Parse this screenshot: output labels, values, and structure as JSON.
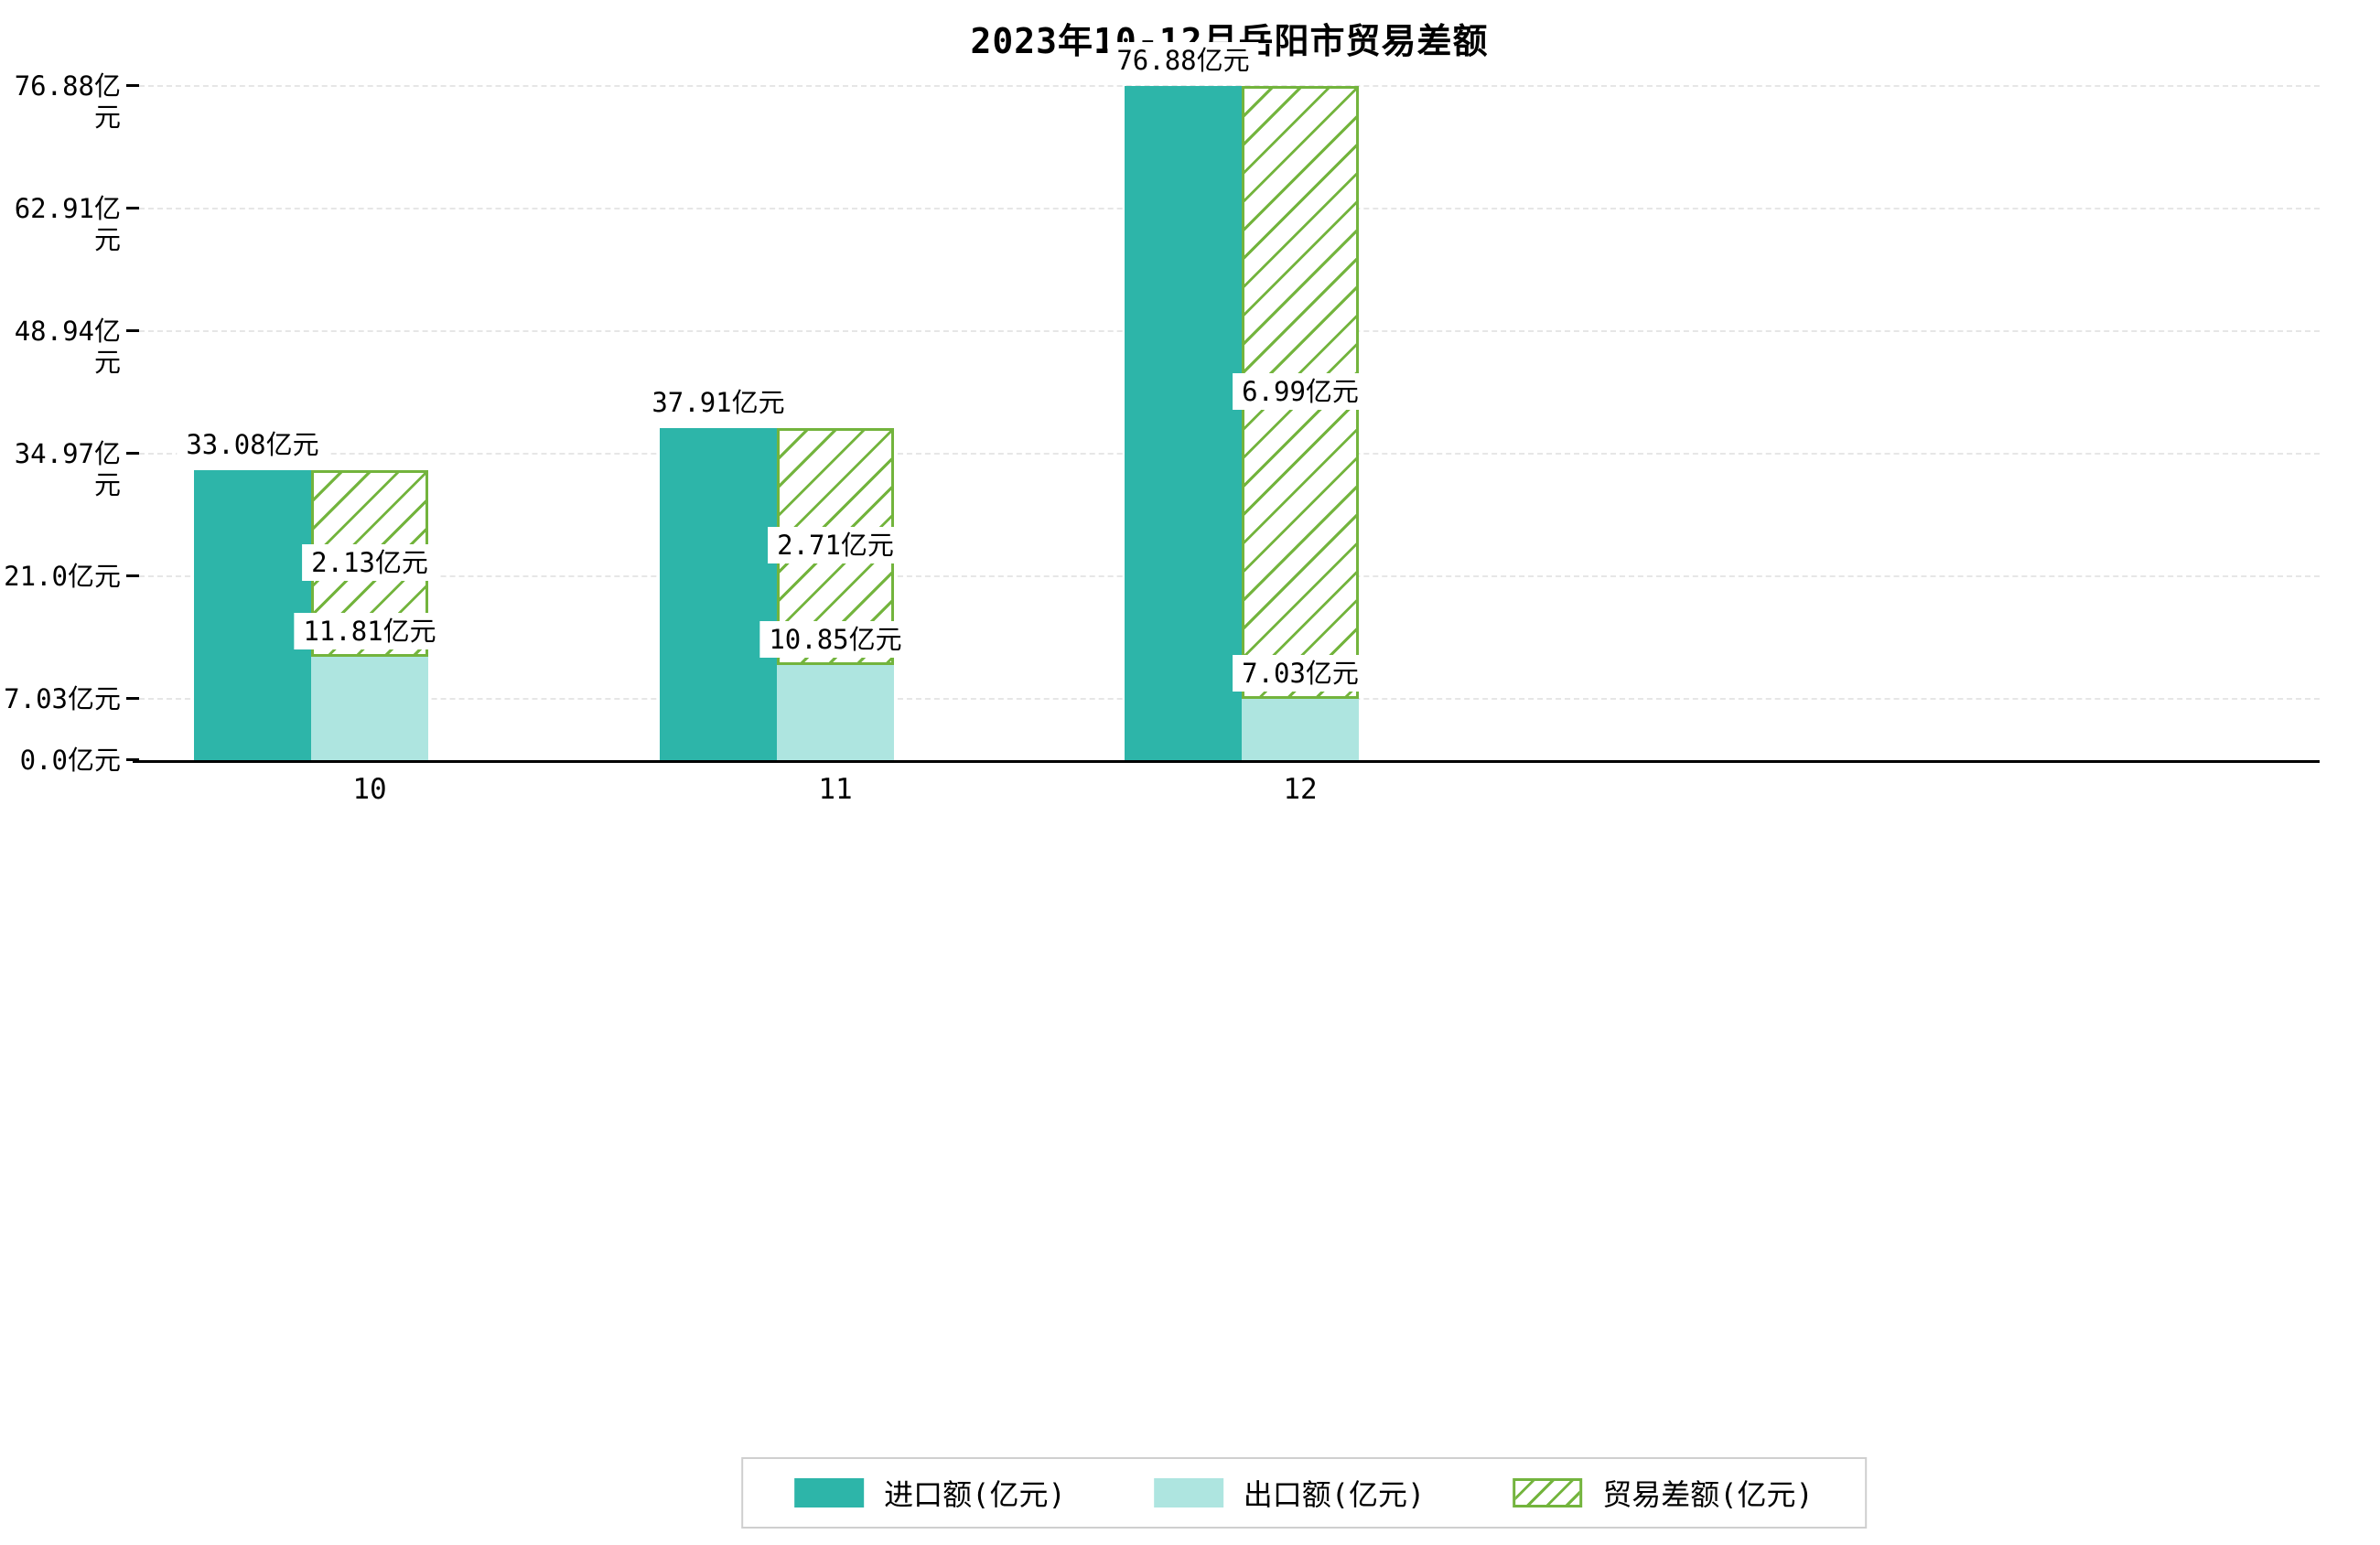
{
  "title": "2023年10-12月岳阳市贸易差额",
  "chart_data": {
    "type": "bar",
    "title": "2023年10-12月岳阳市贸易差额",
    "categories": [
      "10",
      "11",
      "12"
    ],
    "series": [
      {
        "name": "进口额(亿元)",
        "key": "import",
        "color": "#2db5a9",
        "values": [
          33.08,
          37.91,
          76.88
        ],
        "labels": [
          "33.08亿元",
          "37.91亿元",
          "76.88亿元"
        ]
      },
      {
        "name": "出口额(亿元)",
        "key": "export",
        "color": "#aee5e0",
        "values": [
          11.81,
          10.85,
          7.03
        ],
        "labels": [
          "11.81亿元",
          "10.85亿元",
          "7.03亿元"
        ]
      },
      {
        "name": "贸易差额(亿元)",
        "key": "trade-diff",
        "style": "hatched",
        "color": "#73b43d",
        "values": [
          2.13,
          2.71,
          6.99
        ],
        "labels": [
          "2.13亿元",
          "2.71亿元",
          "6.99亿元"
        ],
        "note": "hatched bar drawn over export column, spanning from export value up to import value"
      }
    ],
    "xlabel": "",
    "ylabel": "",
    "ylim": [
      0,
      76.88
    ],
    "yticks": [
      0.0,
      7.03,
      21.0,
      34.97,
      48.94,
      62.91,
      76.88
    ],
    "ytick_labels": [
      "0.0亿元",
      "7.03亿元",
      "21.0亿元",
      "34.97亿元",
      "48.94亿元",
      "62.91亿元",
      "76.88亿元"
    ],
    "grid": "dashed-horizontal",
    "legend_position": "bottom-center"
  },
  "legend": {
    "items": [
      {
        "key": "import",
        "label": "进口额(亿元)",
        "swatch": "solid",
        "color": "#2db5a9"
      },
      {
        "key": "export",
        "label": "出口额(亿元)",
        "swatch": "solid",
        "color": "#aee5e0"
      },
      {
        "key": "trade-diff",
        "label": "贸易差额(亿元)",
        "swatch": "hatched",
        "color": "#73b43d"
      }
    ]
  },
  "colors": {
    "background": "#ffffff",
    "axis": "#000000",
    "gridline": "#e6e6e6",
    "text": "#000000",
    "legend_border": "#cfcfcf"
  }
}
